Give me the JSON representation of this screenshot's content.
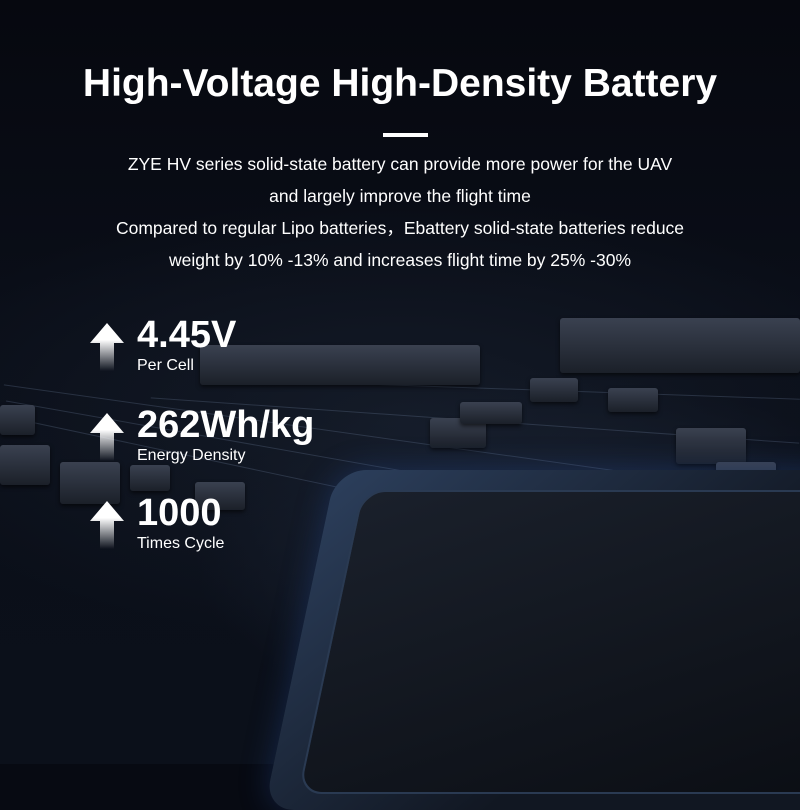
{
  "header": {
    "title": "High-Voltage High-Density Battery",
    "description": [
      "ZYE HV series solid-state battery can provide more power for the UAV",
      "and largely improve the flight time",
      "Compared to regular Lipo batteries，Ebattery solid-state batteries reduce",
      "weight by 10% -13% and increases flight time by 25% -30%"
    ]
  },
  "stats": [
    {
      "value": "4.45V",
      "label": "Per Cell",
      "icon": "up-arrow-icon"
    },
    {
      "value": "262Wh/kg",
      "label": "Energy Density",
      "icon": "up-arrow-icon"
    },
    {
      "value": "1000",
      "label": "Times Cycle",
      "icon": "up-arrow-icon"
    }
  ],
  "colors": {
    "background": "#070a12",
    "text": "#ffffff",
    "chip_glow": "#2c3f5c"
  }
}
